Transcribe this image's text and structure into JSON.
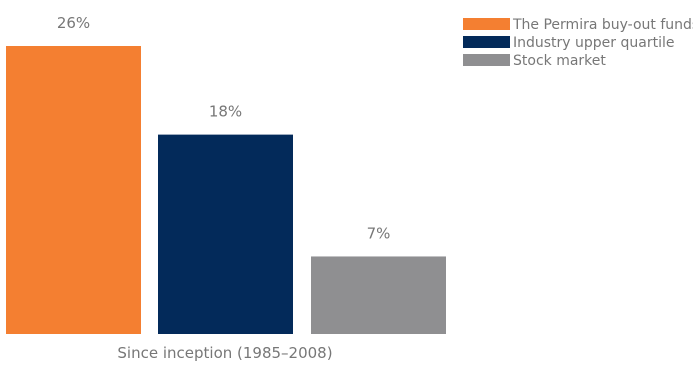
{
  "chart_data": {
    "type": "bar",
    "categories": [
      "Since inception (1985–2008)"
    ],
    "xlabel": "Since inception (1985–2008)",
    "series": [
      {
        "name": "The Permira buy-out funds",
        "values": [
          26
        ],
        "label": "26%",
        "color": "#f47f31"
      },
      {
        "name": "Industry upper quartile",
        "values": [
          18
        ],
        "label": "18%",
        "color": "#032a5a"
      },
      {
        "name": "Stock market",
        "values": [
          7
        ],
        "label": "7%",
        "color": "#8f8f91"
      }
    ],
    "ylim": [
      0,
      26
    ],
    "grid": false,
    "legend_position": "top-right"
  }
}
